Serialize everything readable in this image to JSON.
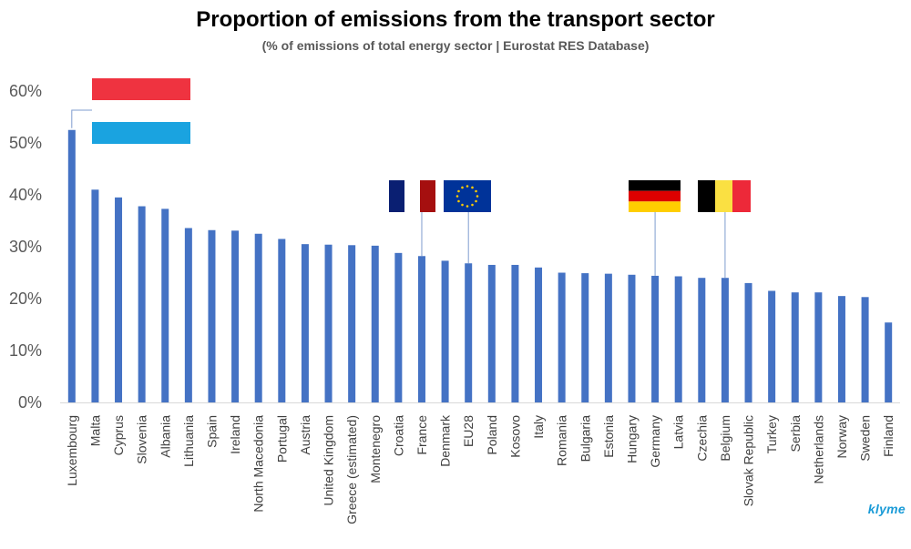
{
  "chart_data": {
    "type": "bar",
    "title": "Proportion of emissions from the transport sector",
    "subtitle": "(% of emissions of total energy sector | Eurostat RES Database)",
    "xlabel": "",
    "ylabel": "",
    "ylim": [
      0,
      60
    ],
    "yticks": [
      "0%",
      "10%",
      "20%",
      "30%",
      "40%",
      "50%",
      "60%"
    ],
    "grid": false,
    "bar_color": "#4472c4",
    "categories": [
      "Luxembourg",
      "Malta",
      "Cyprus",
      "Slovenia",
      "Albania",
      "Lithuania",
      "Spain",
      "Ireland",
      "North Macedonia",
      "Portugal",
      "Austria",
      "United Kingdom",
      "Greece (estimated)",
      "Montenegro",
      "Croatia",
      "France",
      "Denmark",
      "EU28",
      "Poland",
      "Kosovo",
      "Italy",
      "Romania",
      "Bulgaria",
      "Estonia",
      "Hungary",
      "Germany",
      "Latvia",
      "Czechia",
      "Belgium",
      "Slovak Republic",
      "Turkey",
      "Serbia",
      "Netherlands",
      "Norway",
      "Sweden",
      "Finland"
    ],
    "values": [
      52.5,
      41.0,
      39.5,
      37.8,
      37.3,
      33.6,
      33.2,
      33.1,
      32.5,
      31.5,
      30.5,
      30.4,
      30.3,
      30.2,
      28.8,
      28.2,
      27.3,
      26.8,
      26.5,
      26.5,
      26.0,
      25.0,
      24.9,
      24.8,
      24.6,
      24.4,
      24.3,
      24.0,
      24.0,
      23.0,
      21.5,
      21.2,
      21.2,
      20.5,
      20.3,
      15.4
    ],
    "flag_annotations": [
      {
        "category": "Luxembourg",
        "flag": "luxembourg-flag",
        "colors": [
          "#ef3340",
          "#ffffff",
          "#00a3e0"
        ]
      },
      {
        "category": "France",
        "flag": "france-flag",
        "colors": [
          "#002395",
          "#ffffff",
          "#a50f0f"
        ]
      },
      {
        "category": "EU28",
        "flag": "eu-flag",
        "colors": [
          "#003399",
          "#ffcc00"
        ]
      },
      {
        "category": "Germany",
        "flag": "germany-flag",
        "colors": [
          "#000000",
          "#dd0000",
          "#ffce00"
        ]
      },
      {
        "category": "Belgium",
        "flag": "belgium-flag",
        "colors": [
          "#000000",
          "#fae042",
          "#ed2939"
        ]
      }
    ]
  },
  "brand": "klyme"
}
